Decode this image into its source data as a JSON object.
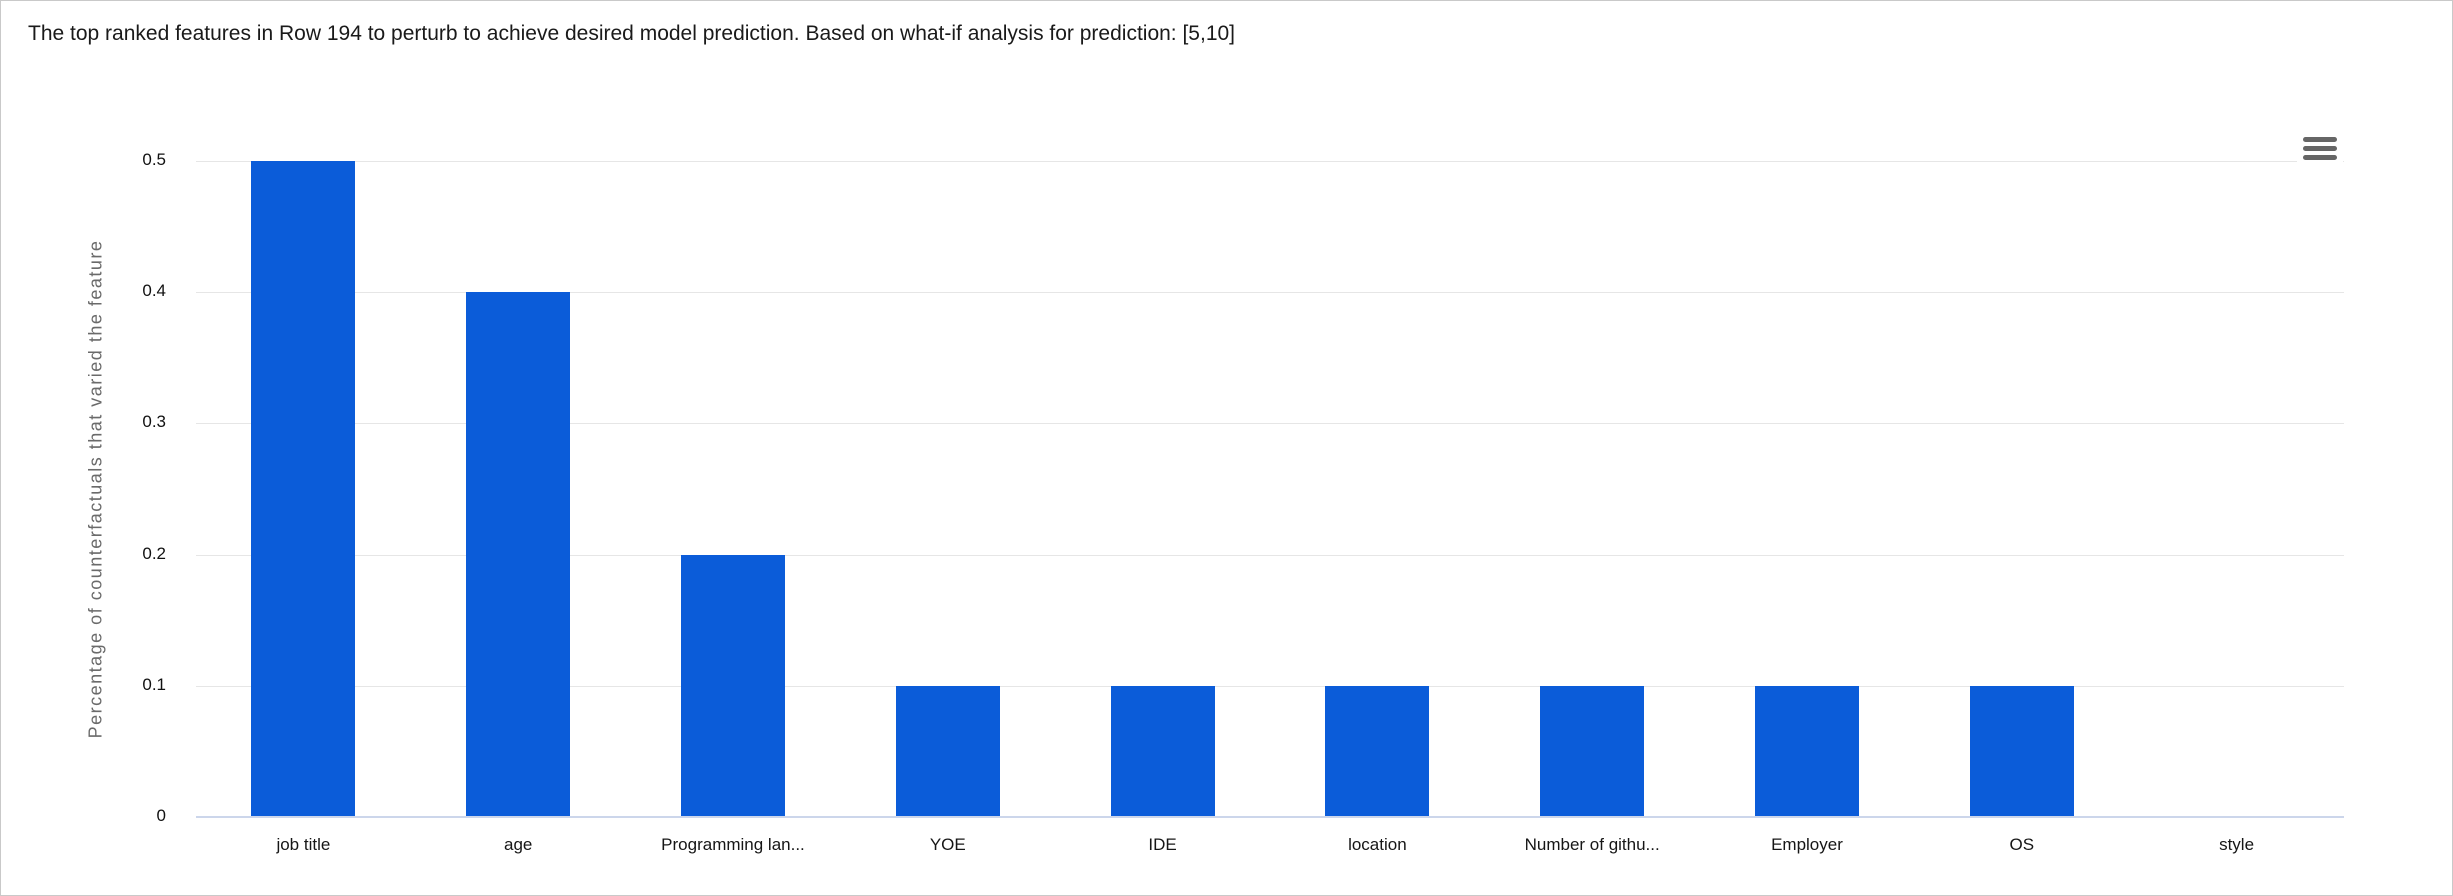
{
  "header": {
    "title": "The top ranked features in Row 194 to perturb to achieve desired model prediction. Based on what-if analysis for prediction: [5,10]"
  },
  "toolbar": {
    "context_menu_icon": "hamburger-menu-icon"
  },
  "chart_data": {
    "type": "bar",
    "categories": [
      "job title",
      "age",
      "Programming lan...",
      "YOE",
      "IDE",
      "location",
      "Number of githu...",
      "Employer",
      "OS",
      "style"
    ],
    "values": [
      0.5,
      0.4,
      0.2,
      0.1,
      0.1,
      0.1,
      0.1,
      0.1,
      0.1,
      0
    ],
    "title": "The top ranked features in Row 194 to perturb to achieve desired model prediction. Based on what-if analysis for prediction: [5,10]",
    "xlabel": "",
    "ylabel": "Percentage of counterfactuals that varied the feature",
    "ylim": [
      0,
      0.5
    ],
    "yticks": [
      0,
      0.1,
      0.2,
      0.3,
      0.4,
      0.5
    ],
    "ytick_labels": [
      "0",
      "0.1",
      "0.2",
      "0.3",
      "0.4",
      "0.5"
    ],
    "grid": "horizontal",
    "legend_position": "none",
    "bar_color": "#0b5cd9",
    "gridline_color": "#e6e6e6",
    "axis_line_color": "#ccd6eb"
  }
}
